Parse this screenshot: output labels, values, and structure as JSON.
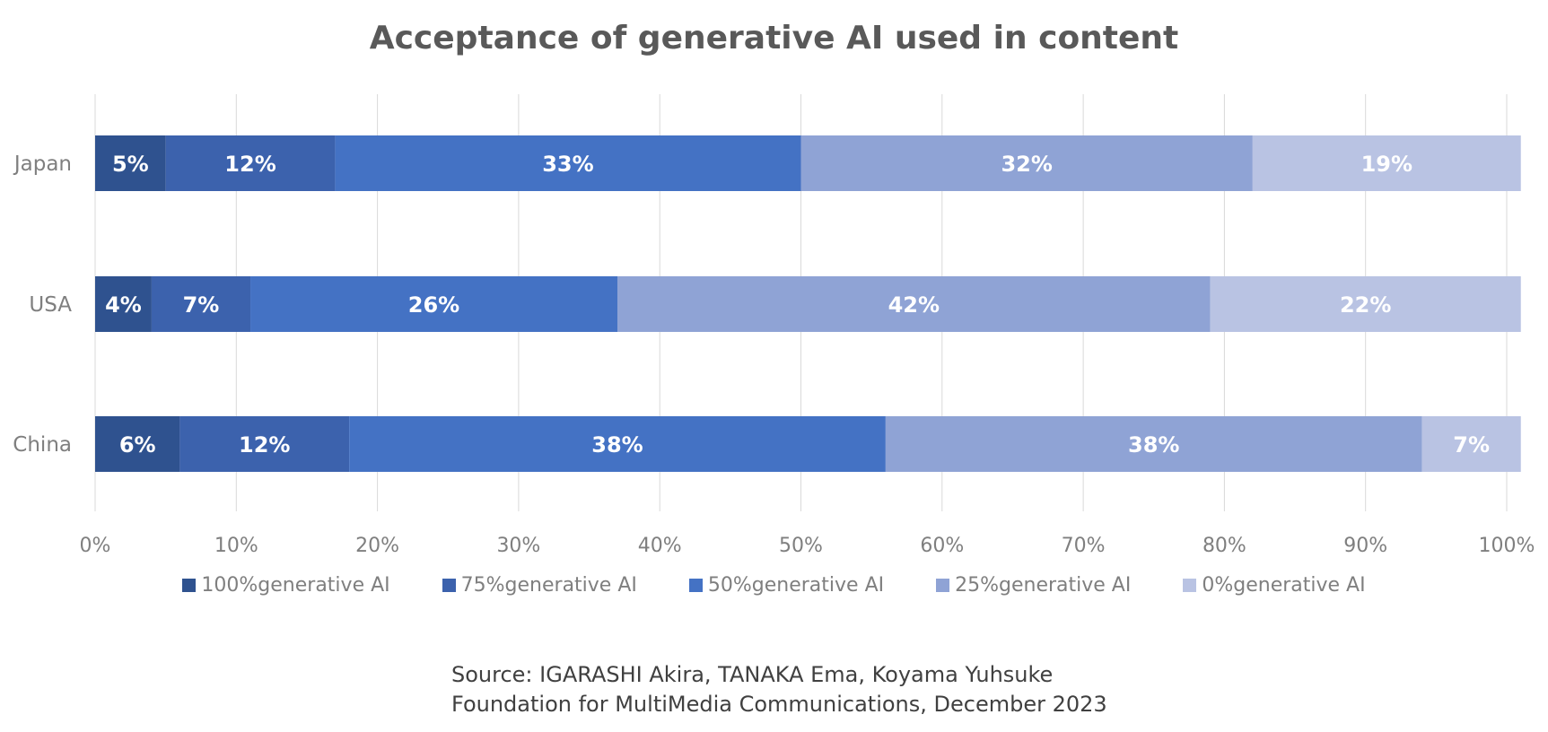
{
  "title": "Acceptance of generative AI used in content",
  "source": {
    "line1": "Source: IGARASHI Akira, TANAKA Ema, Koyama Yuhsuke",
    "line2": "Foundation for MultiMedia Communications, December 2023"
  },
  "chart_data": {
    "type": "bar",
    "orientation": "horizontal",
    "stacked": "100%",
    "title": "Acceptance of generative AI used in content",
    "categories": [
      "Japan",
      "USA",
      "China"
    ],
    "series": [
      {
        "name": "100%generative AI",
        "color": "#2f528f",
        "values": [
          5,
          4,
          6
        ]
      },
      {
        "name": "75%generative AI",
        "color": "#3c62ad",
        "values": [
          12,
          7,
          12
        ]
      },
      {
        "name": "50%generative AI",
        "color": "#4472c4",
        "values": [
          33,
          26,
          38
        ]
      },
      {
        "name": "25%generative AI",
        "color": "#8fa3d5",
        "values": [
          32,
          42,
          38
        ]
      },
      {
        "name": "0%generative AI",
        "color": "#b9c3e3",
        "values": [
          19,
          22,
          7
        ]
      }
    ],
    "data_labels": [
      [
        "5%",
        "12%",
        "33%",
        "32%",
        "19%"
      ],
      [
        "4%",
        "7%",
        "26%",
        "42%",
        "22%"
      ],
      [
        "6%",
        "12%",
        "38%",
        "38%",
        "7%"
      ]
    ],
    "xlim": [
      0,
      100
    ],
    "x_ticks": [
      "0%",
      "10%",
      "20%",
      "30%",
      "40%",
      "50%",
      "60%",
      "70%",
      "80%",
      "90%",
      "100%"
    ],
    "grid": true,
    "legend_position": "bottom"
  }
}
